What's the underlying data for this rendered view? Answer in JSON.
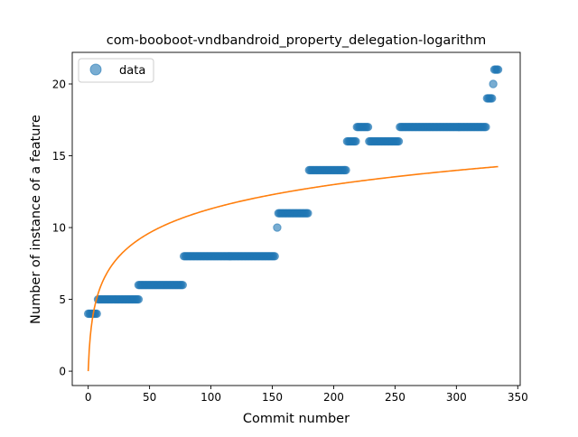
{
  "chart_data": {
    "type": "scatter",
    "title": "com-booboot-vndbandroid_property_delegation-logarithm",
    "xlabel": "Commit number",
    "ylabel": "Number of instance of a feature",
    "xlim": [
      -13,
      352
    ],
    "ylim": [
      -1,
      22.2
    ],
    "xticks": [
      0,
      50,
      100,
      150,
      200,
      250,
      300,
      350
    ],
    "yticks": [
      0,
      5,
      10,
      15,
      20
    ],
    "grid": false,
    "legend": {
      "placement": "top-left",
      "entries": [
        "data"
      ]
    },
    "colors": {
      "data": "#1f77b4",
      "fit": "#ff7f0e"
    },
    "series": [
      {
        "name": "data",
        "kind": "scatter",
        "segments": [
          {
            "x_start": 0,
            "x_end": 7,
            "y": 4
          },
          {
            "x_start": 8,
            "x_end": 41,
            "y": 5
          },
          {
            "x_start": 41,
            "x_end": 77,
            "y": 6
          },
          {
            "x_start": 78,
            "x_end": 152,
            "y": 8
          },
          {
            "x_start": 154,
            "x_end": 154,
            "y": 10
          },
          {
            "x_start": 155,
            "x_end": 179,
            "y": 11
          },
          {
            "x_start": 180,
            "x_end": 210,
            "y": 14
          },
          {
            "x_start": 211,
            "x_end": 218,
            "y": 16
          },
          {
            "x_start": 219,
            "x_end": 228,
            "y": 17
          },
          {
            "x_start": 229,
            "x_end": 253,
            "y": 16
          },
          {
            "x_start": 254,
            "x_end": 324,
            "y": 17
          },
          {
            "x_start": 325,
            "x_end": 329,
            "y": 19
          },
          {
            "x_start": 330,
            "x_end": 330,
            "y": 20
          },
          {
            "x_start": 331,
            "x_end": 334,
            "y": 21
          }
        ]
      },
      {
        "kind": "line",
        "model": "logarithmic",
        "a": 2.45,
        "b": 0,
        "x_range": [
          0,
          334
        ]
      }
    ]
  }
}
